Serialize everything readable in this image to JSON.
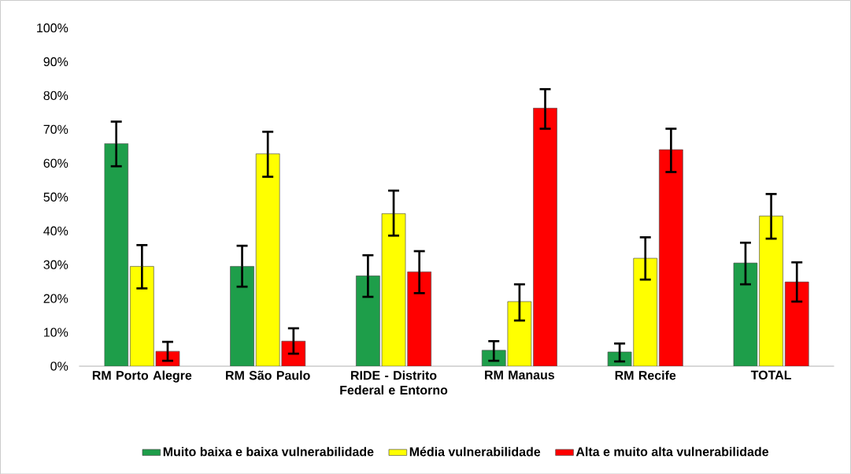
{
  "chart_data": {
    "type": "bar",
    "categories": [
      "RM Porto Alegre",
      "RM São Paulo",
      "RIDE - Distrito Federal e Entorno",
      "RM Manaus",
      "RM Recife",
      "TOTAL"
    ],
    "series": [
      {
        "name": "Muito baixa e baixa vulnerabilidade",
        "color": "#1e9e4a",
        "values": [
          65.8,
          29.5,
          26.7,
          4.7,
          4.2,
          30.5
        ],
        "errors": [
          [
            59.1,
            72.3
          ],
          [
            23.5,
            35.6
          ],
          [
            20.5,
            32.8
          ],
          [
            1.6,
            7.4
          ],
          [
            1.4,
            6.7
          ],
          [
            24.2,
            36.5
          ]
        ]
      },
      {
        "name": "Média vulnerabilidade",
        "color": "#ffff00",
        "values": [
          29.5,
          62.8,
          45.1,
          19.1,
          31.9,
          44.4
        ],
        "errors": [
          [
            23.0,
            35.8
          ],
          [
            56.0,
            69.3
          ],
          [
            38.6,
            51.9
          ],
          [
            13.5,
            24.2
          ],
          [
            25.6,
            38.1
          ],
          [
            37.7,
            50.9
          ]
        ]
      },
      {
        "name": "Alta e muito alta vulnerabilidade",
        "color": "#ff0000",
        "values": [
          4.4,
          7.4,
          27.9,
          76.3,
          64.0,
          24.9
        ],
        "errors": [
          [
            1.6,
            7.2
          ],
          [
            3.7,
            11.2
          ],
          [
            21.6,
            34.0
          ],
          [
            70.2,
            81.9
          ],
          [
            57.4,
            70.2
          ],
          [
            19.1,
            30.7
          ]
        ]
      }
    ],
    "ylim": [
      0,
      100
    ],
    "yticks": [
      {
        "value": 0,
        "label": "0%"
      },
      {
        "value": 10,
        "label": "10%"
      },
      {
        "value": 20,
        "label": "20%"
      },
      {
        "value": 30,
        "label": "30%"
      },
      {
        "value": 40,
        "label": "40%"
      },
      {
        "value": 50,
        "label": "50%"
      },
      {
        "value": 60,
        "label": "60%"
      },
      {
        "value": 70,
        "label": "70%"
      },
      {
        "value": 80,
        "label": "80%"
      },
      {
        "value": 90,
        "label": "90%"
      },
      {
        "value": 100,
        "label": "100%"
      }
    ],
    "grid": false,
    "legend": "bottom"
  }
}
